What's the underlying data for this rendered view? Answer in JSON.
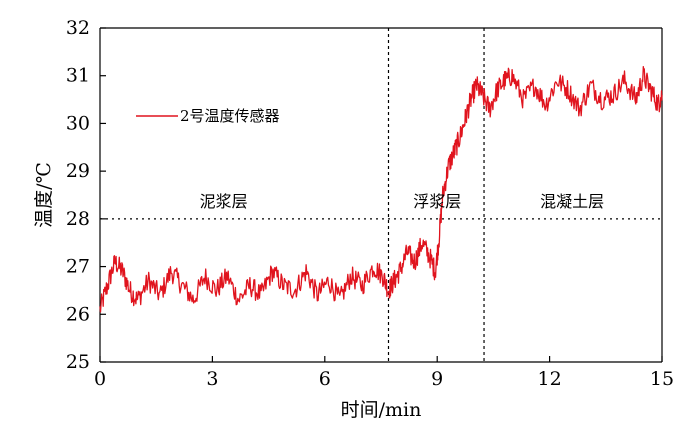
{
  "chart_data": {
    "type": "line",
    "xlabel": "时间/min",
    "ylabel": "温度/℃",
    "xlim": [
      0,
      15
    ],
    "ylim": [
      25,
      32
    ],
    "x_ticks": [
      "0",
      "3",
      "6",
      "9",
      "12",
      "15"
    ],
    "y_ticks": [
      "25",
      "26",
      "27",
      "28",
      "29",
      "30",
      "31",
      "32"
    ],
    "grid": false,
    "legend_position": "upper-left",
    "colors": {
      "series": "#e0141e",
      "axis": "#000000"
    },
    "series": [
      {
        "name": "2号温度传感器",
        "x": [
          0,
          0.2,
          0.4,
          0.6,
          0.8,
          1.0,
          1.3,
          1.6,
          1.9,
          2.2,
          2.5,
          2.8,
          3.1,
          3.4,
          3.7,
          4.0,
          4.3,
          4.6,
          4.9,
          5.2,
          5.5,
          5.8,
          6.1,
          6.4,
          6.7,
          7.0,
          7.3,
          7.55,
          7.7,
          7.85,
          8.0,
          8.2,
          8.4,
          8.6,
          8.8,
          8.95,
          9.05,
          9.15,
          9.3,
          9.45,
          9.6,
          9.75,
          9.9,
          10.05,
          10.2,
          10.4,
          10.6,
          10.8,
          11.0,
          11.3,
          11.6,
          11.9,
          12.2,
          12.5,
          12.8,
          13.1,
          13.4,
          13.7,
          14.0,
          14.3,
          14.5,
          14.7,
          14.9,
          15.0
        ],
        "y": [
          26.1,
          26.6,
          27.1,
          26.9,
          26.5,
          26.3,
          26.7,
          26.4,
          26.9,
          26.6,
          26.3,
          26.8,
          26.5,
          26.8,
          26.3,
          26.6,
          26.4,
          26.9,
          26.6,
          26.5,
          26.9,
          26.4,
          26.7,
          26.3,
          26.8,
          26.6,
          27.0,
          26.8,
          26.5,
          26.7,
          26.9,
          27.3,
          27.1,
          27.5,
          27.2,
          26.9,
          27.6,
          28.5,
          29.1,
          29.4,
          29.7,
          30.1,
          30.5,
          30.8,
          30.6,
          30.3,
          30.7,
          30.9,
          31.0,
          30.5,
          30.8,
          30.4,
          30.9,
          30.7,
          30.3,
          30.8,
          30.5,
          30.6,
          30.9,
          30.5,
          31.0,
          30.7,
          30.4,
          30.6
        ]
      }
    ],
    "vlines": [
      7.7,
      10.25
    ],
    "hline": 28,
    "zone_labels": [
      {
        "text": "泥浆层",
        "x": 3.3,
        "y": 28.25
      },
      {
        "text": "浮浆层",
        "x": 9.0,
        "y": 28.25
      },
      {
        "text": "混凝土层",
        "x": 12.6,
        "y": 28.25
      }
    ]
  }
}
